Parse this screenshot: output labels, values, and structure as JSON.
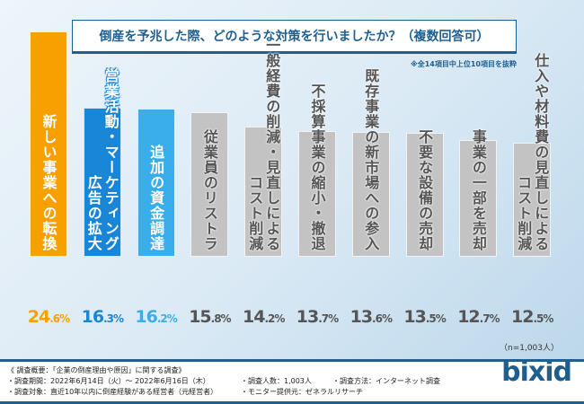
{
  "chart_data": {
    "type": "bar",
    "title": "倒産を予兆した際、どのような対策を行いましたか？（複数回答可）",
    "note": "※全14項目中上位10項目を抜粋",
    "sample": "（n=1,003人）",
    "unit": "%",
    "ylim": [
      0,
      26
    ],
    "categories": [
      [
        "新しい事業への転換"
      ],
      [
        "営業活動・マーケティング",
        "広告の拡大"
      ],
      [
        "追加の資金調達"
      ],
      [
        "従業員のリストラ"
      ],
      [
        "一般経費の削減・見直しによる",
        "コスト削減"
      ],
      [
        "不採算事業の縮小・撤退"
      ],
      [
        "既存事業の新市場への参入"
      ],
      [
        "不要な設備の売却"
      ],
      [
        "事業の一部を売却"
      ],
      [
        "仕入や材料費の見直しによる",
        "コスト削減"
      ]
    ],
    "values": [
      24.6,
      16.3,
      16.2,
      15.8,
      14.2,
      13.7,
      13.6,
      13.5,
      12.7,
      12.5
    ],
    "colors": [
      "#f7a000",
      "#1a86d6",
      "#3aaeea",
      "#c3c3c3",
      "#c3c3c3",
      "#c3c3c3",
      "#c3c3c3",
      "#c3c3c3",
      "#c3c3c3",
      "#c3c3c3"
    ],
    "text_colors": [
      "#f7a000",
      "#1a86d6",
      "#3aaeea",
      "#555555",
      "#555555",
      "#555555",
      "#555555",
      "#555555",
      "#555555",
      "#555555"
    ]
  },
  "footer": {
    "heading": "《 調査概要：「企業の倒産理由や原因」に関する調査》",
    "period": "・調査期間：2022年6月14日（火）～ 2022年6月16日（木）",
    "target": "・調査対象：直近10年以内に倒産経験がある経営者（元経営者）",
    "count": "・調査人数：1,003人",
    "provider": "・モニター提供元：ゼネラルリサーチ",
    "method": "・調査方法：インターネット調査",
    "logo": "bixid"
  }
}
